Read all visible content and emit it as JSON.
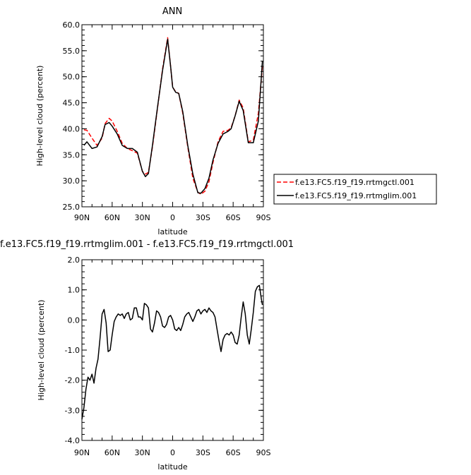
{
  "chart_data": [
    {
      "type": "line",
      "title": "ANN",
      "xlabel": "latitude",
      "ylabel": "High-level cloud (percent)",
      "xlim": [
        90,
        -90
      ],
      "ylim": [
        25.0,
        60.0
      ],
      "xticks": [
        90,
        60,
        30,
        0,
        -30,
        -60,
        -90
      ],
      "xtick_labels": [
        "90N",
        "60N",
        "30N",
        "0",
        "30S",
        "60S",
        "90S"
      ],
      "yticks": [
        25,
        30,
        35,
        40,
        45,
        50,
        55,
        60
      ],
      "ytick_labels": [
        "25.0",
        "30.0",
        "35.0",
        "40.0",
        "45.0",
        "50.0",
        "55.0",
        "60.0"
      ],
      "legend_position": "right",
      "series": [
        {
          "name": "f.e13.FC5.f19_f19.rrtmgctl.001",
          "color": "#ff0000",
          "dash": "dashed",
          "x": [
            88,
            85,
            80,
            75,
            70,
            67,
            63,
            60,
            55,
            50,
            45,
            40,
            35,
            30,
            27,
            24,
            20,
            15,
            10,
            5,
            2,
            0,
            -3,
            -6,
            -10,
            -15,
            -20,
            -25,
            -28,
            -32,
            -36,
            -40,
            -45,
            -50,
            -55,
            -58,
            -62,
            -66,
            -70,
            -75,
            -80,
            -85,
            -89
          ],
          "y": [
            39.8,
            39.7,
            38.2,
            36.8,
            38.2,
            41.0,
            42.0,
            41.5,
            39.5,
            37.2,
            36.2,
            35.8,
            35.3,
            31.8,
            31.3,
            31.6,
            36.5,
            44.0,
            51.5,
            57.5,
            52.0,
            48.0,
            47.1,
            46.8,
            43.0,
            36.5,
            30.5,
            27.8,
            27.4,
            28.0,
            29.8,
            33.5,
            37.5,
            39.5,
            39.7,
            40.2,
            42.5,
            45.5,
            44.0,
            37.5,
            37.8,
            43.0,
            52.0
          ]
        },
        {
          "name": "f.e13.FC5.f19_f19.rrtmglim.001",
          "color": "#000000",
          "dash": "solid",
          "x": [
            88,
            85,
            80,
            75,
            70,
            67,
            63,
            60,
            55,
            50,
            45,
            40,
            35,
            30,
            27,
            24,
            20,
            15,
            10,
            5,
            2,
            0,
            -3,
            -6,
            -10,
            -15,
            -20,
            -25,
            -28,
            -32,
            -36,
            -40,
            -45,
            -50,
            -55,
            -58,
            -62,
            -66,
            -70,
            -75,
            -80,
            -85,
            -89
          ],
          "y": [
            36.8,
            37.5,
            36.2,
            36.5,
            38.5,
            40.8,
            41.2,
            40.5,
            39.0,
            36.8,
            36.2,
            36.2,
            35.5,
            31.8,
            30.8,
            31.4,
            36.8,
            44.2,
            51.2,
            57.2,
            52.0,
            48.0,
            47.0,
            46.8,
            43.3,
            36.8,
            31.3,
            27.7,
            27.6,
            28.5,
            30.5,
            34.0,
            37.2,
            39.0,
            39.5,
            40.0,
            42.5,
            45.3,
            43.5,
            37.3,
            37.3,
            41.5,
            53.0
          ]
        }
      ]
    },
    {
      "type": "line",
      "title": "f.e13.FC5.f19_f19.rrtmglim.001 - f.e13.FC5.f19_f19.rrtmgctl.001",
      "xlabel": "latitude",
      "ylabel": "High-level cloud (percent)",
      "xlim": [
        90,
        -90
      ],
      "ylim": [
        -4.0,
        2.0
      ],
      "xticks": [
        90,
        60,
        30,
        0,
        -30,
        -60,
        -90
      ],
      "xtick_labels": [
        "90N",
        "60N",
        "30N",
        "0",
        "30S",
        "60S",
        "90S"
      ],
      "yticks": [
        -4,
        -3,
        -2,
        -1,
        0,
        1,
        2
      ],
      "ytick_labels": [
        "-4.0",
        "-3.0",
        "-2.0",
        "-1.0",
        "0.0",
        "1.0",
        "2.0"
      ],
      "series": [
        {
          "color": "#000000",
          "x": [
            90,
            88,
            86,
            84,
            82,
            80,
            78,
            76,
            74,
            72,
            70,
            68,
            66,
            64,
            62,
            60,
            58,
            56,
            54,
            52,
            50,
            48,
            46,
            44,
            42,
            40,
            38,
            36,
            34,
            32,
            30,
            28,
            26,
            24,
            22,
            20,
            18,
            16,
            14,
            12,
            10,
            8,
            6,
            4,
            2,
            0,
            -2,
            -4,
            -6,
            -8,
            -10,
            -12,
            -14,
            -16,
            -18,
            -20,
            -22,
            -24,
            -26,
            -28,
            -30,
            -32,
            -34,
            -36,
            -38,
            -40,
            -42,
            -44,
            -46,
            -48,
            -50,
            -52,
            -54,
            -56,
            -58,
            -60,
            -62,
            -64,
            -66,
            -68,
            -70,
            -72,
            -74,
            -76,
            -78,
            -80,
            -82,
            -84,
            -86,
            -88,
            -89
          ],
          "y": [
            -3.3,
            -2.9,
            -2.3,
            -1.9,
            -2.0,
            -1.8,
            -2.1,
            -1.6,
            -1.3,
            -0.6,
            0.2,
            0.35,
            -0.1,
            -1.05,
            -1.0,
            -0.5,
            -0.05,
            0.1,
            0.2,
            0.15,
            0.2,
            0.05,
            0.2,
            0.25,
            0.0,
            0.05,
            0.4,
            0.4,
            0.1,
            0.1,
            0.0,
            0.55,
            0.5,
            0.4,
            -0.3,
            -0.4,
            -0.1,
            0.3,
            0.25,
            0.1,
            -0.2,
            -0.25,
            -0.15,
            0.1,
            0.15,
            0.0,
            -0.3,
            -0.35,
            -0.25,
            -0.35,
            -0.15,
            0.1,
            0.2,
            0.25,
            0.1,
            -0.05,
            0.1,
            0.3,
            0.35,
            0.2,
            0.3,
            0.35,
            0.25,
            0.4,
            0.3,
            0.25,
            0.1,
            -0.3,
            -0.7,
            -1.05,
            -0.65,
            -0.5,
            -0.45,
            -0.5,
            -0.4,
            -0.5,
            -0.75,
            -0.8,
            -0.5,
            0.1,
            0.6,
            0.2,
            -0.5,
            -0.8,
            -0.3,
            0.25,
            0.95,
            1.1,
            1.15,
            0.7,
            0.5
          ]
        }
      ]
    }
  ]
}
